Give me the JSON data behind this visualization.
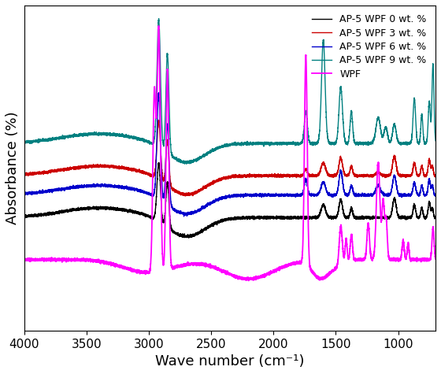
{
  "xlabel": "Wave number (cm⁻¹)",
  "ylabel": "Absorbance (%)",
  "xlim": [
    4000,
    700
  ],
  "legend_entries": [
    "AP-5 WPF 0 wt. %",
    "AP-5 WPF 3 wt. %",
    "AP-5 WPF 6 wt. %",
    "AP-5 WPF 9 wt. %",
    "WPF"
  ],
  "colors": [
    "#000000",
    "#cc0000",
    "#0000cc",
    "#008080",
    "#ff00ff"
  ],
  "linewidths": [
    1.0,
    1.0,
    1.0,
    1.0,
    1.3
  ],
  "xticks": [
    4000,
    3500,
    3000,
    2500,
    2000,
    1500,
    1000
  ],
  "background_color": "#ffffff"
}
